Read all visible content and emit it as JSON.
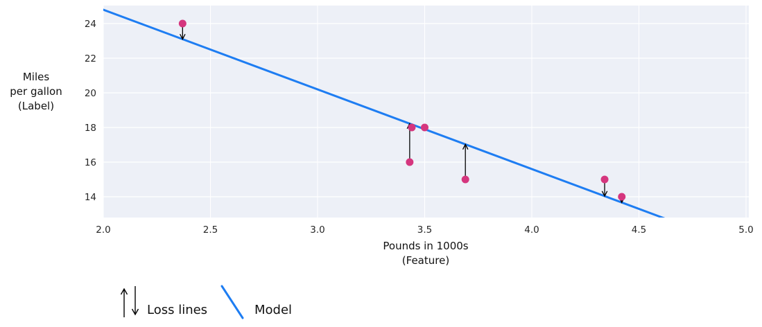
{
  "chart_data": {
    "type": "scatter",
    "title": "",
    "xlabel_lines": [
      "Pounds in 1000s",
      "(Feature)"
    ],
    "ylabel_lines": [
      "Miles",
      "per gallon",
      "(Label)"
    ],
    "xlim": [
      2.0,
      5.013
    ],
    "ylim": [
      12.8,
      25.04
    ],
    "grid": true,
    "x_ticks": [
      2.0,
      2.5,
      3.0,
      3.5,
      4.0,
      4.5,
      5.0
    ],
    "x_tick_labels": [
      "2.0",
      "2.5",
      "3.0",
      "3.5",
      "4.0",
      "4.5",
      "5.0"
    ],
    "y_ticks": [
      14,
      16,
      18,
      20,
      22,
      24
    ],
    "y_tick_labels": [
      "14",
      "16",
      "18",
      "20",
      "22",
      "24"
    ],
    "points": [
      {
        "x": 2.37,
        "y": 24
      },
      {
        "x": 3.44,
        "y": 18
      },
      {
        "x": 3.5,
        "y": 18
      },
      {
        "x": 3.43,
        "y": 16
      },
      {
        "x": 3.69,
        "y": 15
      },
      {
        "x": 4.34,
        "y": 15
      },
      {
        "x": 4.42,
        "y": 14
      }
    ],
    "model_line": {
      "slope": -4.6,
      "intercept": 34
    },
    "loss_arrows": [
      {
        "x": 2.37,
        "y": 24,
        "dir": "down"
      },
      {
        "x": 3.43,
        "y": 16,
        "dir": "up"
      },
      {
        "x": 3.44,
        "y": 18,
        "dir": "up"
      },
      {
        "x": 3.69,
        "y": 15,
        "dir": "up"
      },
      {
        "x": 4.34,
        "y": 15,
        "dir": "down"
      },
      {
        "x": 4.42,
        "y": 14,
        "dir": "down"
      }
    ],
    "colors": {
      "point": "#d5367e",
      "model": "#1e7df2",
      "arrow": "#000000",
      "plot_bg": "#edf0f7",
      "grid": "#ffffff",
      "tick_text": "#262626"
    },
    "legend_position": "bottom-left"
  },
  "legend": {
    "loss_label": "Loss lines",
    "model_label": "Model"
  }
}
